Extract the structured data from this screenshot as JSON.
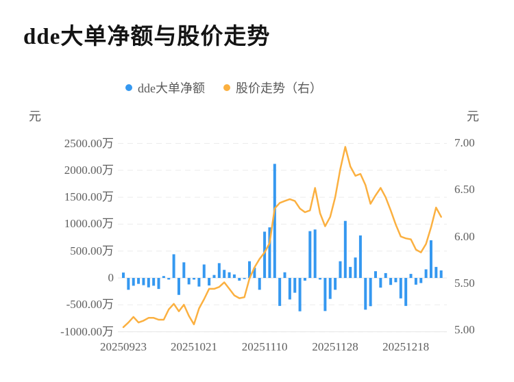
{
  "title": {
    "text": "dde大单净额与股价走势"
  },
  "legend": {
    "items": [
      {
        "label": "dde大单净额",
        "series": "bars"
      },
      {
        "label": "股价走势（右）",
        "series": "line"
      }
    ]
  },
  "axes": {
    "left": {
      "unit": "元",
      "tick_labels": [
        "2500.00万",
        "2000.00万",
        "1500.00万",
        "1000.00万",
        "500.00万",
        "0",
        "-500.00万",
        "-1000.00万"
      ],
      "tick_values_wan": [
        2500,
        2000,
        1500,
        1000,
        500,
        0,
        -500,
        -1000
      ]
    },
    "right": {
      "unit": "元",
      "tick_labels": [
        "7.00",
        "6.50",
        "6.00",
        "5.50",
        "5.00"
      ],
      "tick_values": [
        7.0,
        6.5,
        6.0,
        5.5,
        5.0
      ]
    },
    "x": {
      "tick_labels": [
        "20250923",
        "20251021",
        "20251110",
        "20251128",
        "20251218"
      ],
      "tick_day_indices": [
        0,
        14,
        28,
        42,
        56
      ]
    }
  },
  "colors": {
    "bar": "#3598F0",
    "line": "#FBB040",
    "grid": "#EBEBEB",
    "zero_line": "#E4E4E4",
    "axis_line": "#E7E7E7",
    "text": "#5e5e5e",
    "title": "#141414"
  },
  "chart_data": {
    "type": "combo-bar-line",
    "title": "dde大单净额与股价走势",
    "grid": "horizontal dashed",
    "legend_position": "top-center",
    "x": [
      "20250923",
      "20250924",
      "20250925",
      "20250926",
      "20250929",
      "20250930",
      "20251009",
      "20251010",
      "20251013",
      "20251014",
      "20251015",
      "20251016",
      "20251017",
      "20251020",
      "20251021",
      "20251022",
      "20251023",
      "20251024",
      "20251027",
      "20251028",
      "20251029",
      "20251030",
      "20251031",
      "20251103",
      "20251104",
      "20251105",
      "20251106",
      "20251107",
      "20251110",
      "20251111",
      "20251112",
      "20251113",
      "20251114",
      "20251117",
      "20251118",
      "20251119",
      "20251120",
      "20251121",
      "20251124",
      "20251125",
      "20251126",
      "20251127",
      "20251128",
      "20251201",
      "20251202",
      "20251203",
      "20251204",
      "20251205",
      "20251208",
      "20251209",
      "20251210",
      "20251211",
      "20251212",
      "20251215",
      "20251216",
      "20251217",
      "20251218",
      "20251219",
      "20251222",
      "20251223",
      "20251224",
      "20251225",
      "20251226",
      "20251229"
    ],
    "series": [
      {
        "name": "dde大单净额",
        "type": "bar",
        "axis": "left",
        "unit": "万元",
        "values": [
          100,
          -220,
          -145,
          -110,
          -135,
          -175,
          -145,
          -205,
          35,
          -30,
          440,
          -315,
          290,
          -120,
          -30,
          -160,
          250,
          -140,
          55,
          275,
          150,
          105,
          65,
          -50,
          -20,
          310,
          190,
          -220,
          860,
          940,
          2120,
          -520,
          105,
          -400,
          -275,
          -620,
          -50,
          870,
          900,
          -30,
          -615,
          -390,
          -220,
          310,
          1060,
          205,
          380,
          790,
          -590,
          -525,
          125,
          -180,
          90,
          -130,
          -80,
          -380,
          -520,
          75,
          -125,
          -95,
          160,
          700,
          205,
          140
        ]
      },
      {
        "name": "股价走势",
        "type": "line",
        "axis": "right",
        "unit": "元",
        "values": [
          5.03,
          5.08,
          5.14,
          5.08,
          5.1,
          5.13,
          5.13,
          5.11,
          5.11,
          5.22,
          5.28,
          5.2,
          5.27,
          5.15,
          5.06,
          5.23,
          5.33,
          5.44,
          5.44,
          5.46,
          5.51,
          5.44,
          5.37,
          5.34,
          5.35,
          5.55,
          5.67,
          5.76,
          5.83,
          5.93,
          6.3,
          6.36,
          6.38,
          6.4,
          6.38,
          6.3,
          6.26,
          6.28,
          6.52,
          6.25,
          6.11,
          6.21,
          6.42,
          6.72,
          6.96,
          6.75,
          6.65,
          6.67,
          6.55,
          6.35,
          6.44,
          6.52,
          6.42,
          6.28,
          6.13,
          6.0,
          5.98,
          5.97,
          5.86,
          5.83,
          5.92,
          6.1,
          6.31,
          6.21
        ]
      }
    ],
    "left_ylim_wan": [
      -1000,
      2500
    ],
    "right_ylim": [
      5.0,
      7.0
    ]
  }
}
